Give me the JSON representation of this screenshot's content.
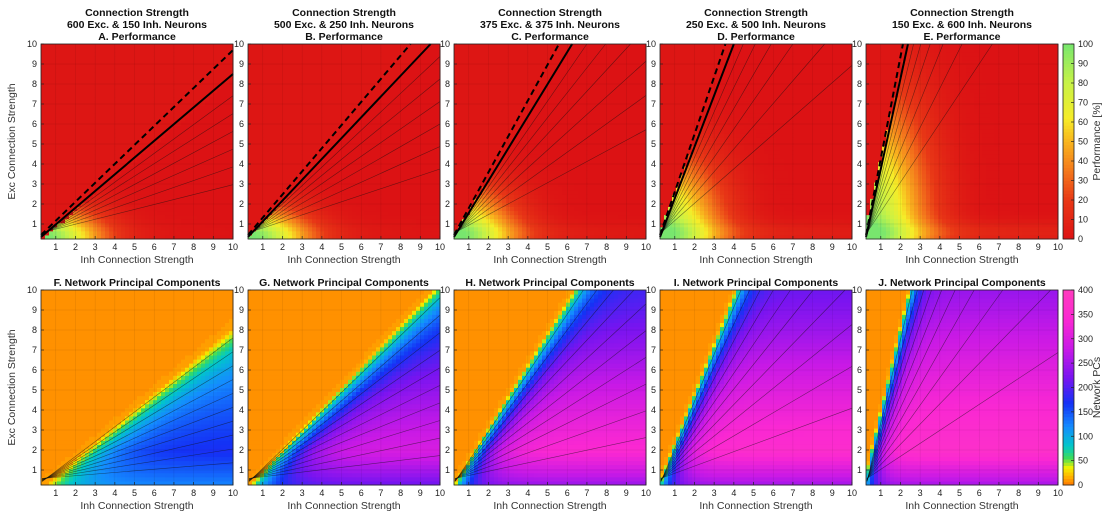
{
  "chart_data": {
    "type": "contour",
    "figure": {
      "xlabel": "Inh Connection Strength",
      "ylabel": "Exc Connection Strength",
      "x_ticks": [
        1,
        2,
        3,
        4,
        5,
        6,
        7,
        8,
        9,
        10
      ],
      "y_ticks": [
        1,
        2,
        3,
        4,
        5,
        6,
        7,
        8,
        9,
        10
      ],
      "xlim": [
        0.25,
        10
      ],
      "ylim": [
        0.25,
        10
      ]
    },
    "panels": [
      {
        "row": 0,
        "title_lines": [
          "Connection Strength",
          "600 Exc. & 150 Inh. Neurons",
          "A. Performance"
        ],
        "metric": "performance",
        "slope": 0.83,
        "exc": 600,
        "inh": 150
      },
      {
        "row": 0,
        "title_lines": [
          "Connection Strength",
          "500 Exc. & 250 Inh. Neurons",
          "B. Performance"
        ],
        "metric": "performance",
        "slope": 1.05,
        "exc": 500,
        "inh": 250
      },
      {
        "row": 0,
        "title_lines": [
          "Connection Strength",
          "375 Exc. & 375 Inh. Neurons",
          "C. Performance"
        ],
        "metric": "performance",
        "slope": 1.6,
        "exc": 375,
        "inh": 375
      },
      {
        "row": 0,
        "title_lines": [
          "Connection Strength",
          "250 Exc. & 500 Inh. Neurons",
          "D. Performance"
        ],
        "metric": "performance",
        "slope": 2.5,
        "exc": 250,
        "inh": 500
      },
      {
        "row": 0,
        "title_lines": [
          "Connection Strength",
          "150 Exc. & 600 Inh. Neurons",
          "E. Performance"
        ],
        "metric": "performance",
        "slope": 4.2,
        "exc": 150,
        "inh": 600
      },
      {
        "row": 1,
        "title_lines": [
          "F. Network Principal Components"
        ],
        "metric": "pcs",
        "slope": 0.83,
        "max_pcs": 180
      },
      {
        "row": 1,
        "title_lines": [
          "G. Network Principal Components"
        ],
        "metric": "pcs",
        "slope": 1.05,
        "max_pcs": 310
      },
      {
        "row": 1,
        "title_lines": [
          "H. Network Principal Components"
        ],
        "metric": "pcs",
        "slope": 1.6,
        "max_pcs": 355
      },
      {
        "row": 1,
        "title_lines": [
          "I. Network Principal Components"
        ],
        "metric": "pcs",
        "slope": 2.5,
        "max_pcs": 365
      },
      {
        "row": 1,
        "title_lines": [
          "J. Network Principal Components"
        ],
        "metric": "pcs",
        "slope": 4.2,
        "max_pcs": 370
      }
    ],
    "colorbars": [
      {
        "label": "Performance [%]",
        "range": [
          0,
          100
        ],
        "ticks": [
          0,
          10,
          20,
          30,
          40,
          50,
          60,
          70,
          80,
          90,
          100
        ]
      },
      {
        "label": "Network PCs",
        "range": [
          0,
          400
        ],
        "ticks": [
          0,
          50,
          100,
          150,
          200,
          250,
          300,
          350,
          400
        ]
      }
    ]
  }
}
